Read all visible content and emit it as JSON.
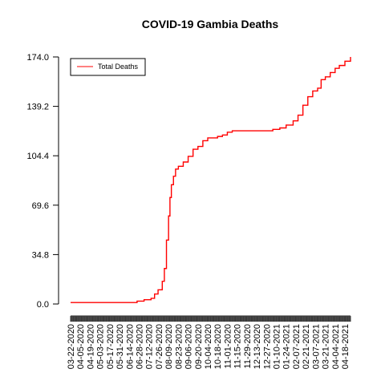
{
  "chart_data": {
    "type": "line",
    "title": "COVID-19 Gambia Deaths",
    "xlabel": "",
    "ylabel": "",
    "ylim": [
      0,
      174
    ],
    "yticks": [
      "0.0",
      "34.8",
      "69.6",
      "104.4",
      "139.2",
      "174.0"
    ],
    "xtick_labels": [
      "03-22-2020",
      "04-05-2020",
      "04-19-2020",
      "05-03-2020",
      "05-17-2020",
      "05-31-2020",
      "06-14-2020",
      "06-28-2020",
      "07-12-2020",
      "07-26-2020",
      "08-09-2020",
      "08-23-2020",
      "09-06-2020",
      "09-20-2020",
      "10-04-2020",
      "10-18-2020",
      "11-01-2020",
      "11-15-2020",
      "11-29-2020",
      "12-13-2020",
      "12-27-2020",
      "01-10-2021",
      "01-24-2021",
      "02-07-2021",
      "02-21-2021",
      "03-07-2021",
      "03-21-2021",
      "04-04-2021",
      "04-18-2021"
    ],
    "legend": {
      "position": "top-left",
      "entries": [
        "Total Deaths"
      ]
    },
    "grid": false,
    "series": [
      {
        "name": "Total Deaths",
        "color": "#ff0000",
        "points": [
          [
            "03-22-2020",
            1
          ],
          [
            "06-24-2020",
            1
          ],
          [
            "06-25-2020",
            2
          ],
          [
            "07-05-2020",
            3
          ],
          [
            "07-15-2020",
            4
          ],
          [
            "07-20-2020",
            7
          ],
          [
            "07-25-2020",
            10
          ],
          [
            "07-31-2020",
            16
          ],
          [
            "08-03-2020",
            25
          ],
          [
            "08-06-2020",
            45
          ],
          [
            "08-09-2020",
            62
          ],
          [
            "08-11-2020",
            75
          ],
          [
            "08-13-2020",
            84
          ],
          [
            "08-16-2020",
            90
          ],
          [
            "08-19-2020",
            95
          ],
          [
            "08-23-2020",
            97
          ],
          [
            "08-30-2020",
            100
          ],
          [
            "09-06-2020",
            104
          ],
          [
            "09-13-2020",
            109
          ],
          [
            "09-20-2020",
            111
          ],
          [
            "09-27-2020",
            115
          ],
          [
            "10-04-2020",
            117
          ],
          [
            "10-18-2020",
            118
          ],
          [
            "10-25-2020",
            119
          ],
          [
            "11-01-2020",
            121
          ],
          [
            "11-08-2020",
            122
          ],
          [
            "11-29-2020",
            122
          ],
          [
            "12-27-2020",
            122
          ],
          [
            "01-05-2021",
            123
          ],
          [
            "01-15-2021",
            124
          ],
          [
            "01-24-2021",
            126
          ],
          [
            "02-03-2021",
            129
          ],
          [
            "02-10-2021",
            133
          ],
          [
            "02-17-2021",
            140
          ],
          [
            "02-24-2021",
            146
          ],
          [
            "03-03-2021",
            150
          ],
          [
            "03-10-2021",
            152
          ],
          [
            "03-15-2021",
            158
          ],
          [
            "03-21-2021",
            160
          ],
          [
            "03-28-2021",
            163
          ],
          [
            "04-04-2021",
            166
          ],
          [
            "04-10-2021",
            168
          ],
          [
            "04-18-2021",
            171
          ],
          [
            "04-26-2021",
            174
          ]
        ]
      }
    ]
  }
}
